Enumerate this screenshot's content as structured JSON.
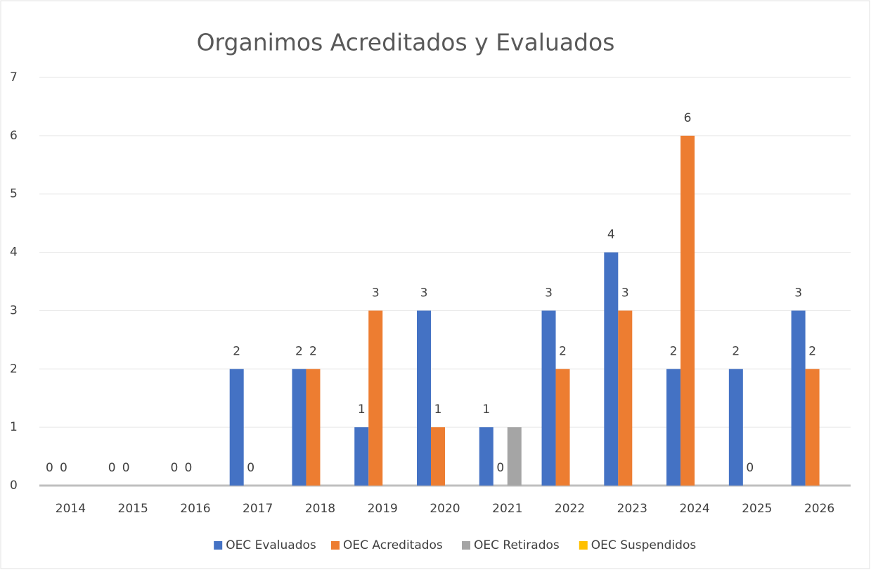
{
  "chart_data": {
    "type": "bar",
    "title": "Organimos Acreditados y Evaluados",
    "categories": [
      "2014",
      "2015",
      "2016",
      "2017",
      "2018",
      "2019",
      "2020",
      "2021",
      "2022",
      "2023",
      "2024",
      "2025",
      "2026"
    ],
    "series": [
      {
        "name": "OEC Evaluados",
        "color": "#4472c4",
        "values": [
          0,
          0,
          0,
          2,
          2,
          1,
          3,
          1,
          3,
          4,
          2,
          2,
          3
        ],
        "show_labels": true
      },
      {
        "name": "OEC Acreditados",
        "color": "#ed7d31",
        "values": [
          0,
          0,
          0,
          0,
          2,
          3,
          1,
          0,
          2,
          3,
          6,
          0,
          2
        ],
        "show_labels": true
      },
      {
        "name": "OEC Retirados",
        "color": "#a5a5a5",
        "values": [
          0,
          0,
          0,
          0,
          0,
          0,
          0,
          1,
          0,
          0,
          0,
          0,
          0
        ],
        "show_labels": false
      },
      {
        "name": "OEC Suspendidos",
        "color": "#ffc000",
        "values": [
          0,
          0,
          0,
          0,
          0,
          0,
          0,
          0,
          0,
          0,
          0,
          0,
          0
        ],
        "show_labels": false
      }
    ],
    "ylim": [
      0,
      7
    ],
    "yticks": [
      0,
      1,
      2,
      3,
      4,
      5,
      6,
      7
    ],
    "grid": true,
    "legend": "bottom"
  }
}
